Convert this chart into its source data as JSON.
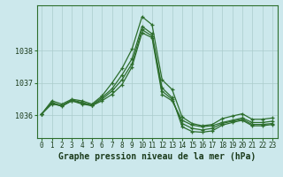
{
  "background_color": "#cce8ec",
  "grid_color": "#aacccc",
  "line_color": "#2d6e2d",
  "title": "Graphe pression niveau de la mer (hPa)",
  "title_fontsize": 7,
  "xticks": [
    0,
    1,
    2,
    3,
    4,
    5,
    6,
    7,
    8,
    9,
    10,
    11,
    12,
    13,
    14,
    15,
    16,
    17,
    18,
    19,
    20,
    21,
    22,
    23
  ],
  "ylim": [
    1035.3,
    1039.4
  ],
  "ytick_vals": [
    1036,
    1037,
    1038
  ],
  "tick_fontsize": 6,
  "series": [
    [
      1036.05,
      1036.35,
      1036.3,
      1036.45,
      1036.35,
      1036.3,
      1036.45,
      1036.65,
      1036.95,
      1037.5,
      1038.55,
      1038.4,
      1036.65,
      1036.45,
      1035.85,
      1035.7,
      1035.65,
      1035.68,
      1035.78,
      1035.85,
      1035.92,
      1035.78,
      1035.78,
      1035.82
    ],
    [
      1036.05,
      1036.38,
      1036.28,
      1036.45,
      1036.38,
      1036.3,
      1036.5,
      1036.75,
      1037.1,
      1037.6,
      1038.65,
      1038.45,
      1036.75,
      1036.5,
      1035.75,
      1035.6,
      1035.55,
      1035.6,
      1035.75,
      1035.82,
      1035.88,
      1035.72,
      1035.72,
      1035.75
    ],
    [
      1036.05,
      1036.4,
      1036.3,
      1036.48,
      1036.4,
      1036.32,
      1036.55,
      1036.82,
      1037.25,
      1037.75,
      1038.75,
      1038.52,
      1036.85,
      1036.55,
      1035.65,
      1035.5,
      1035.48,
      1035.52,
      1035.7,
      1035.78,
      1035.85,
      1035.68,
      1035.68,
      1035.72
    ],
    [
      1036.05,
      1036.45,
      1036.35,
      1036.5,
      1036.45,
      1036.35,
      1036.6,
      1037.0,
      1037.45,
      1038.05,
      1039.05,
      1038.8,
      1037.1,
      1036.8,
      1035.95,
      1035.75,
      1035.68,
      1035.72,
      1035.9,
      1035.98,
      1036.05,
      1035.88,
      1035.88,
      1035.92
    ]
  ]
}
